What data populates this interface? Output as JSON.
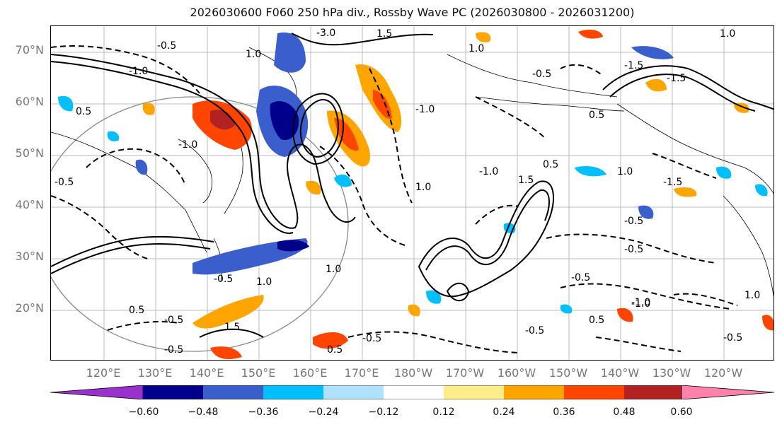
{
  "title": "2026030600 F060 250 hPa div., Rossby Wave PC (2026030800 - 2026031200)",
  "latitude_labels": [
    "70°N",
    "60°N",
    "50°N",
    "40°N",
    "30°N",
    "20°N"
  ],
  "longitude_labels": [
    "120°E",
    "130°E",
    "140°E",
    "150°E",
    "160°E",
    "170°E",
    "180°W",
    "170°W",
    "160°W",
    "150°W",
    "140°W",
    "130°W",
    "120°W"
  ],
  "contour_labels": [
    "-3.0",
    "1.0",
    "-0.5",
    "-1.0",
    "1.5",
    "-0.5",
    "0.5",
    "1.0",
    "-1.5",
    "0.5",
    "-1.0",
    "-0.5",
    "1.0",
    "1.5",
    "0.5",
    "-1.0",
    "-1.0",
    "-0.5",
    "1.0",
    "-0.5",
    "-0.5",
    "-1.0",
    "-0.5",
    "0.5",
    "1.0",
    "-0.5",
    "-0.5",
    "1.5",
    "0.5",
    "-0.5",
    "-1.0",
    "1.0",
    "-0.5",
    "0.5",
    "-1.5",
    "-1.5",
    "1.0",
    "-0.5",
    "1.0"
  ],
  "colorbar": {
    "ticks": [
      "−0.60",
      "−0.48",
      "−0.36",
      "−0.24",
      "−0.12",
      "0.12",
      "0.24",
      "0.36",
      "0.48",
      "0.60"
    ],
    "colors": [
      "#9932cc",
      "#00008b",
      "#3a5fcd",
      "#00bfff",
      "#b0e2ff",
      "#ffffff",
      "#ffec8b",
      "#ffa500",
      "#ff4500",
      "#b22222",
      "#ff82ab"
    ]
  }
}
